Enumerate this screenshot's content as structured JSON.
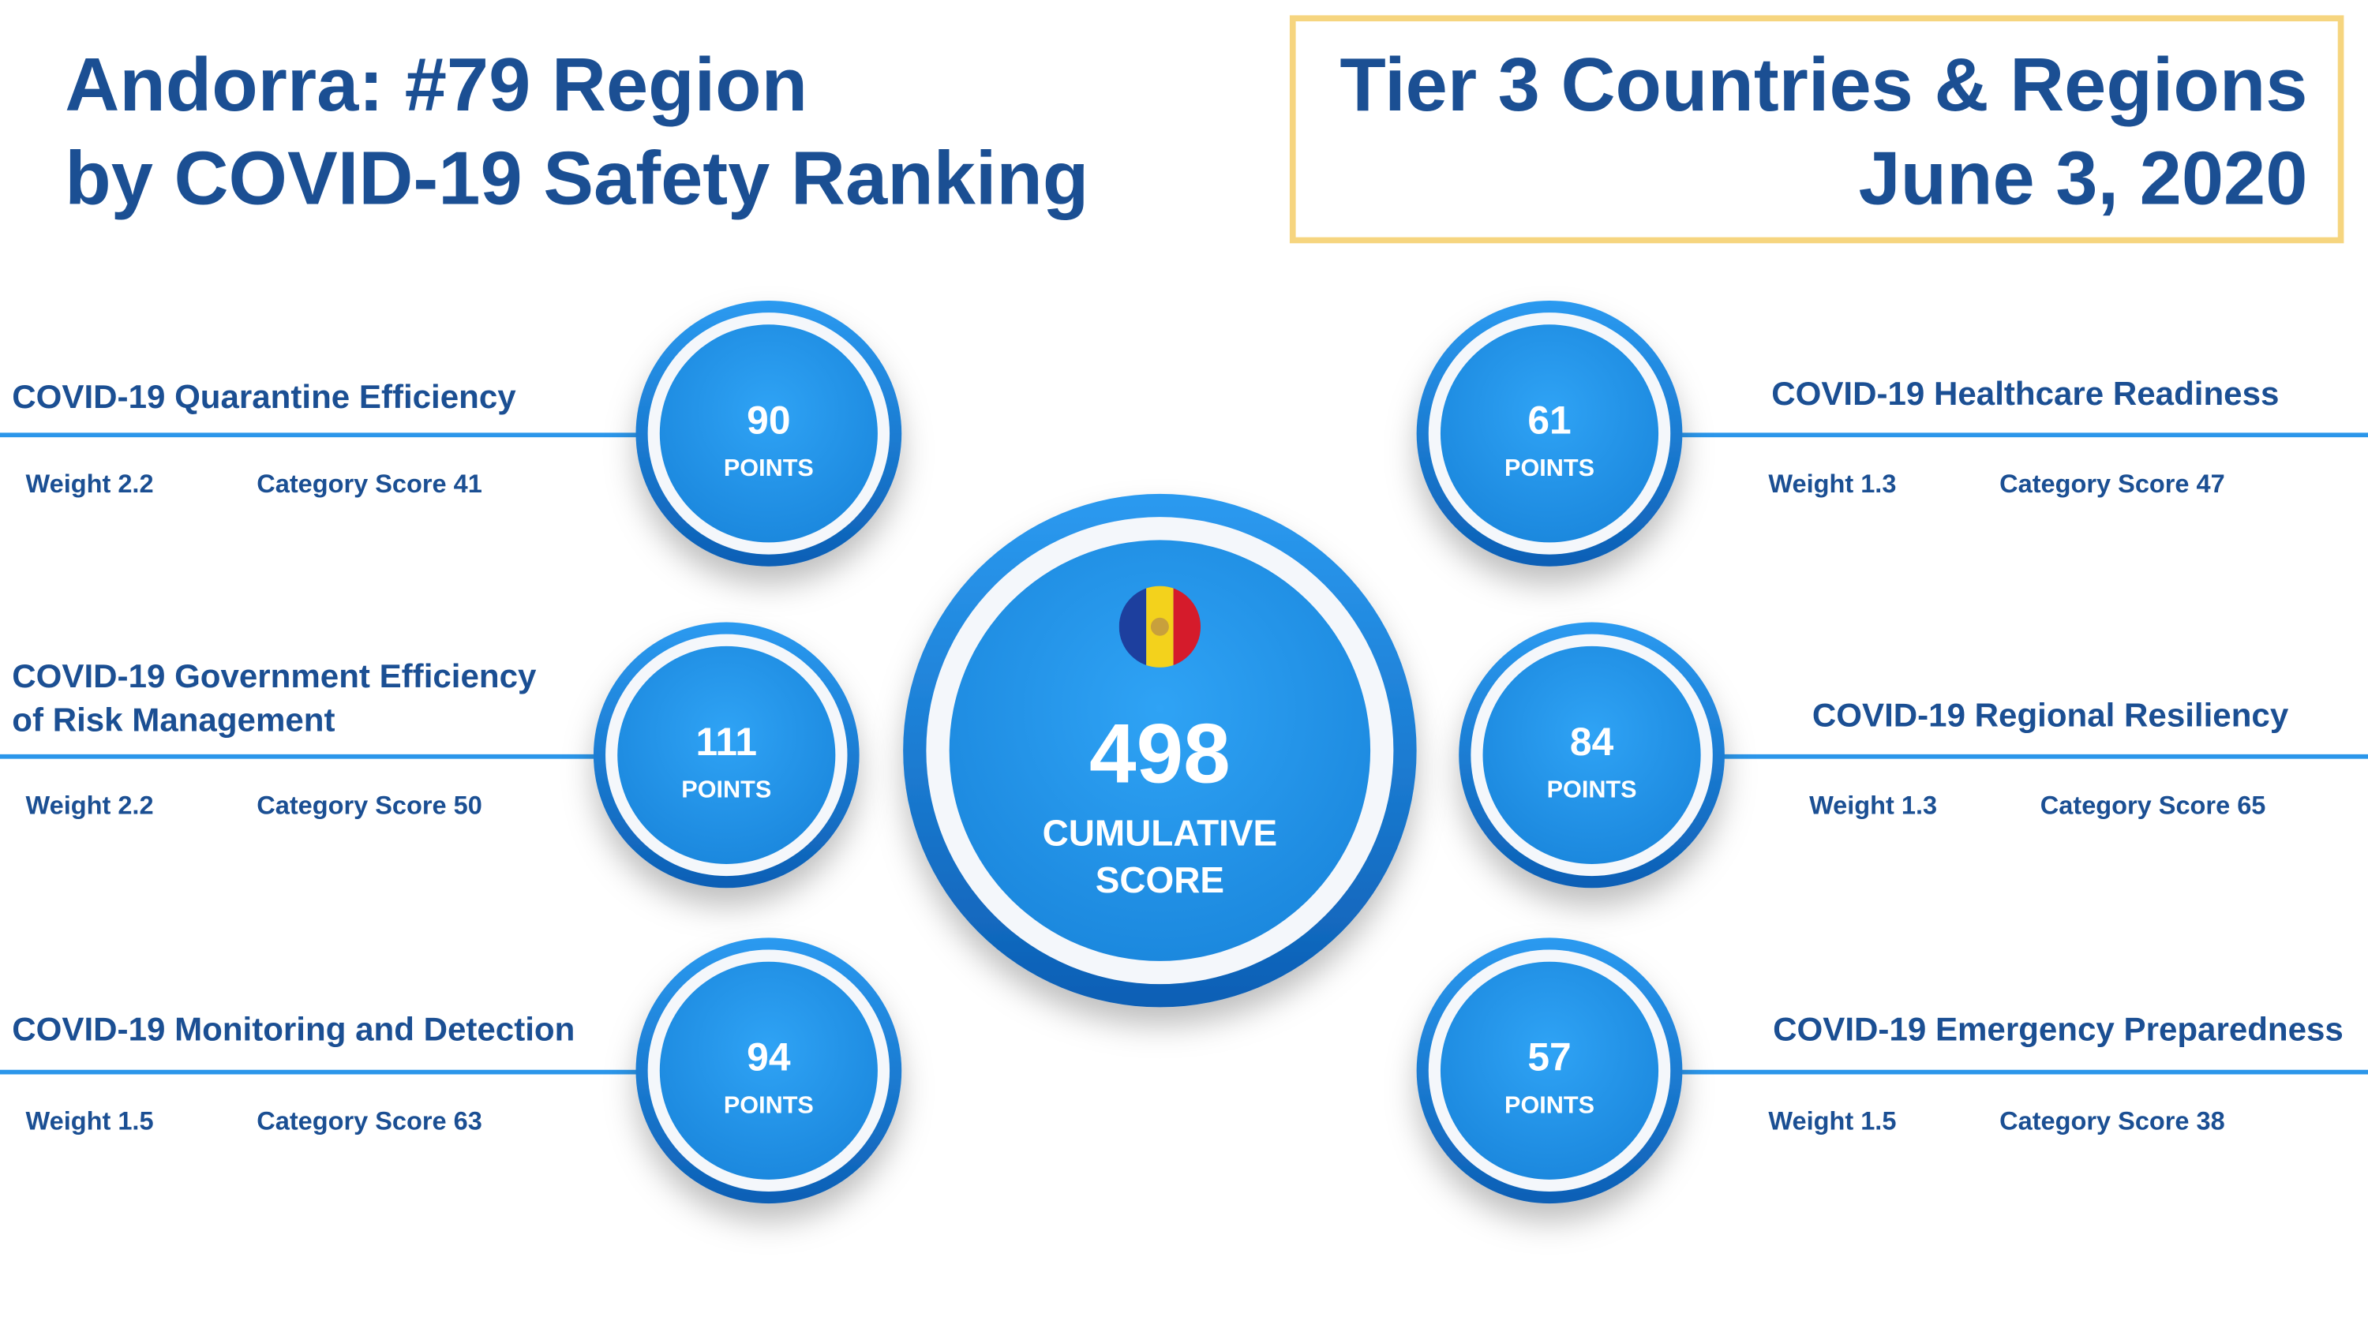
{
  "header": {
    "title_lines": [
      "Andorra: #79 Region",
      "by COVID-19 Safety Ranking"
    ]
  },
  "tier_box": {
    "lines": [
      "Tier 3 Countries & Regions",
      "June 3, 2020"
    ]
  },
  "center": {
    "score": 498,
    "label_lines": [
      "CUMULATIVE",
      "SCORE"
    ]
  },
  "points_label": "POINTS",
  "categories": [
    {
      "name_lines": [
        "COVID-19 Quarantine Efficiency"
      ],
      "points": 90,
      "weight": "Weight 2.2",
      "category_score": "Category Score 41"
    },
    {
      "name_lines": [
        "COVID-19 Government Efficiency",
        "of Risk Management"
      ],
      "points": 111,
      "weight": "Weight 2.2",
      "category_score": "Category Score 50"
    },
    {
      "name_lines": [
        "COVID-19 Monitoring and Detection"
      ],
      "points": 94,
      "weight": "Weight 1.5",
      "category_score": "Category Score 63"
    },
    {
      "name_lines": [
        "COVID-19 Healthcare Readiness"
      ],
      "points": 61,
      "weight": "Weight 1.3",
      "category_score": "Category Score 47"
    },
    {
      "name_lines": [
        "COVID-19 Regional Resiliency"
      ],
      "points": 84,
      "weight": "Weight 1.3",
      "category_score": "Category Score 65"
    },
    {
      "name_lines": [
        "COVID-19 Emergency Preparedness"
      ],
      "points": 57,
      "weight": "Weight 1.5",
      "category_score": "Category Score 38"
    }
  ]
}
